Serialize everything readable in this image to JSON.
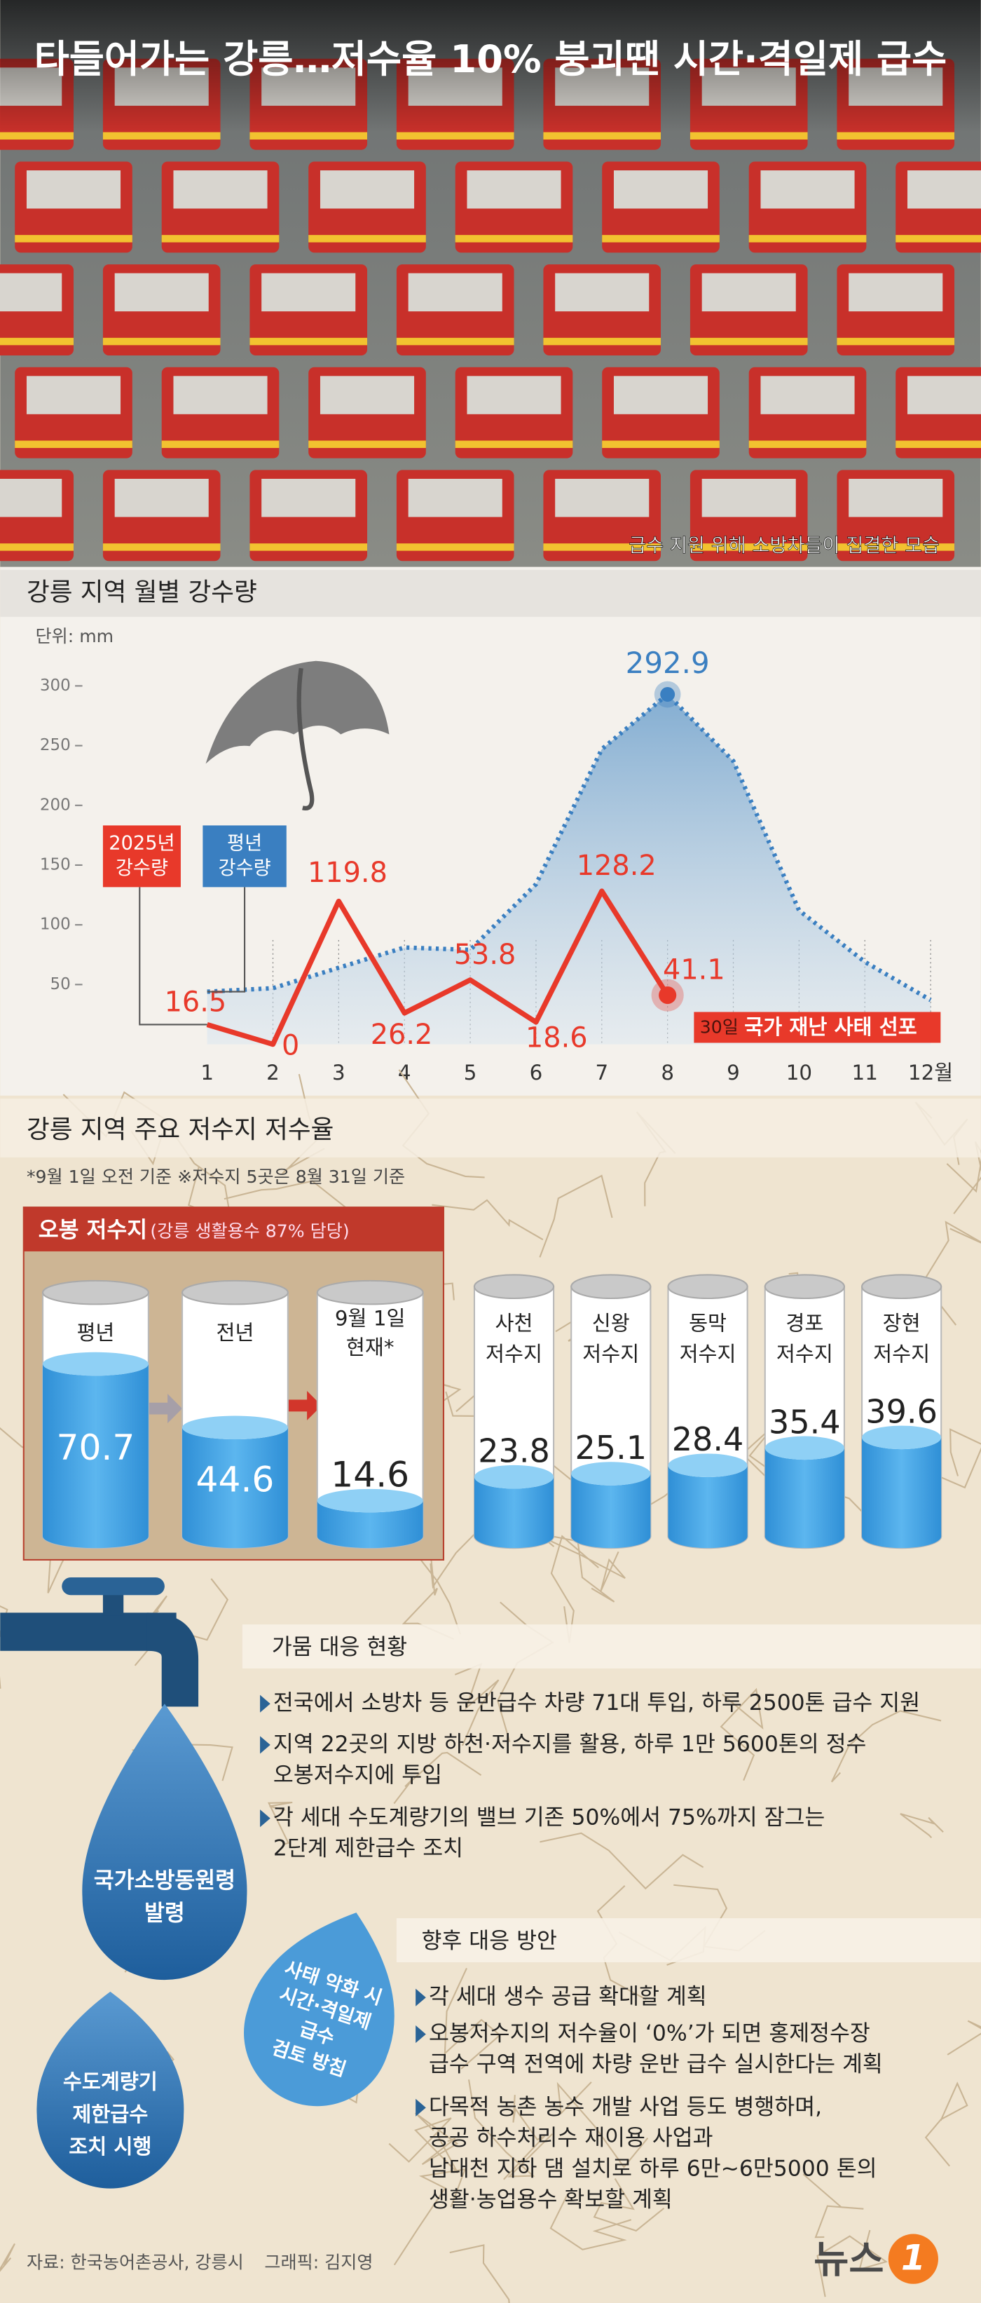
{
  "header": {
    "title": "타들어가는 강릉…저수율 10% 붕괴땐 시간·격일제 급수",
    "photo_caption": "급수 지원 위해 소방차들이 집결한 모습"
  },
  "chart_data": [
    {
      "type": "line",
      "title": "강릉 지역 월별 강수량",
      "unit": "단위: mm",
      "categories": [
        "1",
        "2",
        "3",
        "4",
        "5",
        "6",
        "7",
        "8",
        "9",
        "10",
        "11",
        "12월"
      ],
      "series": [
        {
          "name": "2025년\n강수량",
          "color": "#e8392a",
          "values": [
            16.5,
            0,
            119.8,
            26.2,
            53.8,
            18.6,
            128.2,
            41.1,
            null,
            null,
            null,
            null
          ]
        },
        {
          "name": "평년\n강수량",
          "color": "#3a7fc1",
          "dashed": true,
          "area": true,
          "values": [
            44,
            47,
            64,
            81,
            79,
            134,
            247,
            292.9,
            237,
            112,
            69,
            37
          ],
          "value_labels": [
            null,
            null,
            null,
            null,
            null,
            null,
            null,
            "292.9",
            null,
            null,
            null,
            null
          ]
        }
      ],
      "ylim": [
        0,
        300
      ],
      "yticks": [
        50,
        100,
        150,
        200,
        250,
        300
      ],
      "annotation": {
        "day": "30일",
        "text": "국가 재난 사태 선포"
      }
    },
    {
      "type": "bar",
      "title": "오봉 저수지",
      "subtitle": "(강릉 생활용수 87% 담당)",
      "categories": [
        "평년",
        "전년",
        "9월 1일\n현재*"
      ],
      "values": [
        70.7,
        44.6,
        14.6
      ],
      "ylim": [
        0,
        100
      ],
      "color": "#3e9ee0"
    },
    {
      "type": "bar",
      "categories": [
        "사천\n저수지",
        "신왕\n저수지",
        "동막\n저수지",
        "경포\n저수지",
        "장현\n저수지"
      ],
      "values": [
        23.8,
        25.1,
        28.4,
        35.4,
        39.6
      ],
      "ylim": [
        0,
        100
      ],
      "color": "#3e9ee0"
    }
  ],
  "reservoirs": {
    "title": "강릉 지역 주요 저수지 저수율",
    "note": "*9월 1일 오전 기준  ※저수지 5곳은 8월 31일 기준"
  },
  "drought_response": {
    "title": "가뭄 대응 현황",
    "bullets": [
      "전국에서 소방차 등 운반급수 차량 71대 투입, 하루 2500톤 급수 지원",
      "지역 22곳의 지방 하천·저수지를 활용, 하루 1만 5600톤의 정수\n오봉저수지에 투입",
      "각 세대 수도계량기의 밸브 기존 50%에서 75%까지 잠그는\n2단계 제한급수 조치"
    ],
    "drops": [
      "국가소방동원령\n발령",
      "수도계량기\n제한급수\n조치 시행",
      "사태 악화 시\n시간·격일제\n급수\n검토 방침"
    ]
  },
  "future_plans": {
    "title": "향후 대응 방안",
    "bullets": [
      "각 세대 생수 공급 확대할 계획",
      "오봉저수지의 저수율이 ‘0%’가 되면 홍제정수장\n급수 구역 전역에 차량 운반 급수 실시한다는 계획",
      "다목적 농촌 농수 개발 사업 등도 병행하며,\n공공 하수처리수 재이용 사업과\n남대천 지하 댐 설치로 하루 6만~6만5000 톤의\n생활·농업용수 확보할 계획"
    ]
  },
  "footer": {
    "source": "자료: 한국농어촌공사, 강릉시",
    "credit": "그래픽: 김지영",
    "logo": "뉴스",
    "logo_mark": "1"
  }
}
